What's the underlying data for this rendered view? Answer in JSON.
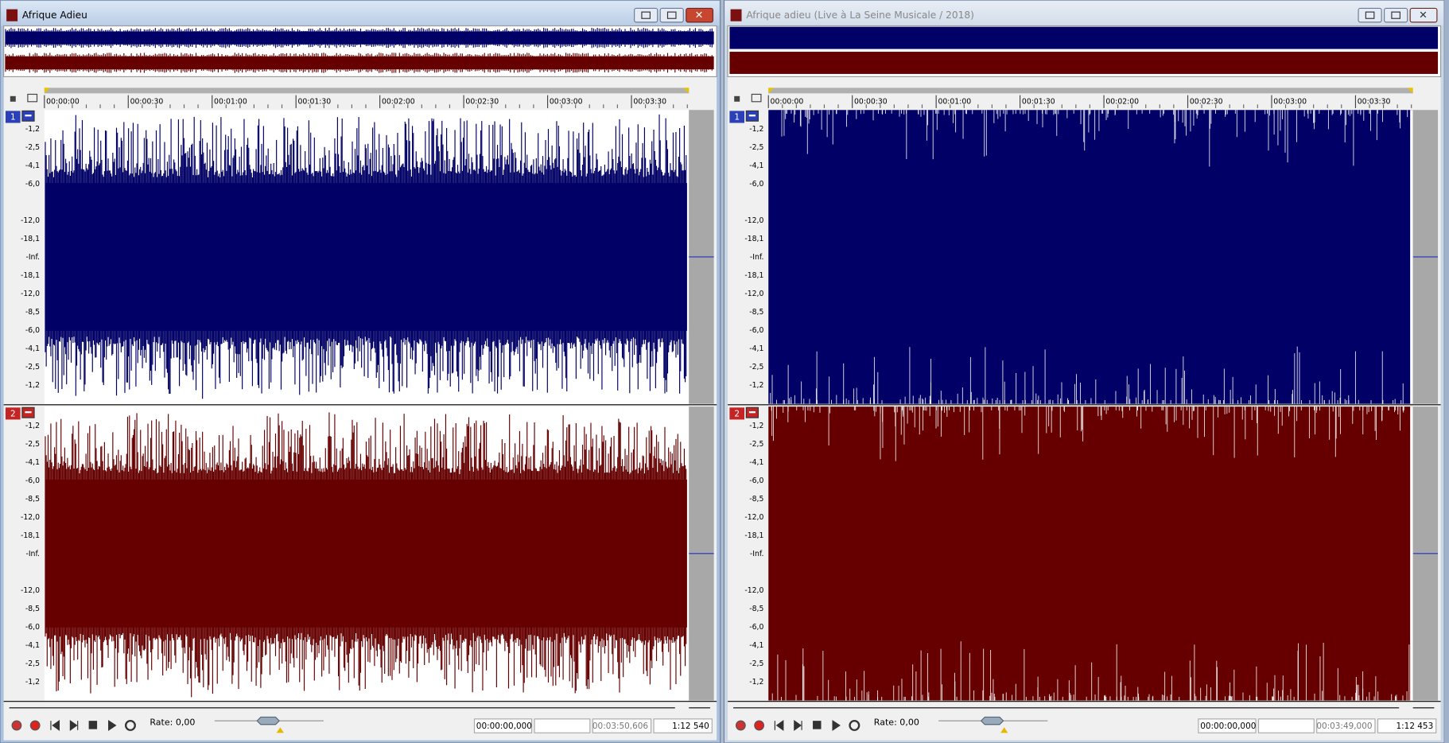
{
  "windows": [
    {
      "title": "Afrique Adieu",
      "ruler": [
        "00:00:00",
        "00:00:30",
        "00:01:00",
        "00:01:30",
        "00:02:00",
        "00:02:30",
        "00:03:00",
        "00:03:30"
      ],
      "channels": [
        {
          "number": "1",
          "db_labels": [
            "-1,2",
            "-2,5",
            "-4,1",
            "-6,0",
            "-12,0",
            "-18,1",
            "-Inf.",
            "-18,1",
            "-12,0",
            "-8,5",
            "-6,0",
            "-4,1",
            "-2,5",
            "-1,2"
          ]
        },
        {
          "number": "2",
          "db_labels": [
            "-1,2",
            "-2,5",
            "-4,1",
            "-6,0",
            "-8,5",
            "-12,0",
            "-18,1",
            "-Inf.",
            "-12,0",
            "-8,5",
            "-6,0",
            "-4,1",
            "-2,5",
            "-1,2"
          ]
        }
      ],
      "rate": "Rate: 0,00",
      "position": "00:00:00,000",
      "length": "00:03:50,606",
      "zoom": "1:12 540"
    },
    {
      "title": "Afrique adieu (Live à La Seine Musicale / 2018)",
      "ruler": [
        "00:00:00",
        "00:00:30",
        "00:01:00",
        "00:01:30",
        "00:02:00",
        "00:02:30",
        "00:03:00",
        "00:03:30"
      ],
      "channels": [
        {
          "number": "1",
          "db_labels": [
            "-1,2",
            "-2,5",
            "-4,1",
            "-6,0",
            "-12,0",
            "-18,1",
            "-Inf.",
            "-18,1",
            "-12,0",
            "-8,5",
            "-6,0",
            "-4,1",
            "-2,5",
            "-1,2"
          ]
        },
        {
          "number": "2",
          "db_labels": [
            "-1,2",
            "-2,5",
            "-4,1",
            "-6,0",
            "-8,5",
            "-12,0",
            "-18,1",
            "-Inf.",
            "-12,0",
            "-8,5",
            "-6,0",
            "-4,1",
            "-2,5",
            "-1,2"
          ]
        }
      ],
      "rate": "Rate: 0,00",
      "position": "00:00:00,000",
      "length": "00:03:49,000",
      "zoom": "1:12 453"
    }
  ]
}
